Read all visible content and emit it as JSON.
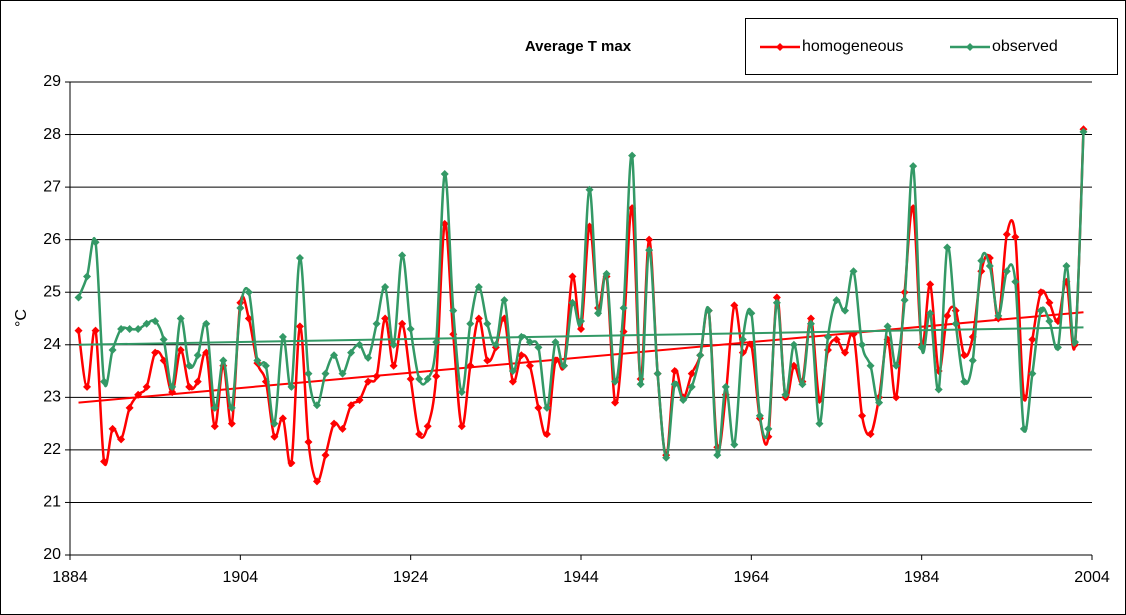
{
  "chart_data": {
    "type": "line",
    "title": "Average T max",
    "y_label": "°C",
    "xlim": [
      1884,
      2004
    ],
    "xticks": [
      1884,
      1904,
      1924,
      1944,
      1964,
      1984,
      2004
    ],
    "ylim": [
      20,
      29
    ],
    "yticks": [
      20,
      21,
      22,
      23,
      24,
      25,
      26,
      27,
      28,
      29
    ],
    "grid": true,
    "legend": "top-right",
    "x": [
      1885,
      1886,
      1887,
      1888,
      1889,
      1890,
      1891,
      1892,
      1893,
      1894,
      1895,
      1896,
      1897,
      1898,
      1899,
      1900,
      1901,
      1902,
      1903,
      1904,
      1905,
      1906,
      1907,
      1908,
      1909,
      1910,
      1911,
      1912,
      1913,
      1914,
      1915,
      1916,
      1917,
      1918,
      1919,
      1920,
      1921,
      1922,
      1923,
      1924,
      1925,
      1926,
      1927,
      1928,
      1929,
      1930,
      1931,
      1932,
      1933,
      1934,
      1935,
      1936,
      1937,
      1938,
      1939,
      1940,
      1941,
      1942,
      1943,
      1944,
      1945,
      1946,
      1947,
      1948,
      1949,
      1950,
      1951,
      1952,
      1953,
      1954,
      1955,
      1956,
      1957,
      1958,
      1959,
      1960,
      1961,
      1962,
      1963,
      1964,
      1965,
      1966,
      1967,
      1968,
      1969,
      1970,
      1971,
      1972,
      1973,
      1974,
      1975,
      1976,
      1977,
      1978,
      1979,
      1980,
      1981,
      1982,
      1983,
      1984,
      1985,
      1986,
      1987,
      1988,
      1989,
      1990,
      1991,
      1992,
      1993,
      1994,
      1995,
      1996,
      1997,
      1998,
      1999,
      2000,
      2001,
      2002,
      2003
    ],
    "series": [
      {
        "name": "homogeneous",
        "color": "#ff0000",
        "values": [
          24.27,
          23.2,
          24.27,
          21.78,
          22.4,
          22.2,
          22.8,
          23.05,
          23.2,
          23.85,
          23.7,
          23.1,
          23.9,
          23.2,
          23.3,
          23.85,
          22.45,
          23.6,
          22.5,
          24.8,
          24.5,
          23.65,
          23.3,
          22.25,
          22.6,
          21.75,
          24.35,
          22.15,
          21.4,
          21.9,
          22.5,
          22.4,
          22.85,
          22.95,
          23.3,
          23.4,
          24.5,
          23.6,
          24.4,
          23.35,
          22.3,
          22.45,
          23.4,
          26.3,
          24.2,
          22.45,
          23.6,
          24.5,
          23.7,
          23.95,
          24.5,
          23.3,
          23.8,
          23.6,
          22.8,
          22.3,
          23.7,
          23.6,
          25.3,
          24.3,
          26.25,
          24.7,
          25.3,
          22.9,
          24.25,
          26.6,
          23.35,
          26.0,
          23.45,
          21.9,
          23.5,
          23.0,
          23.45,
          23.8,
          24.65,
          22.05,
          23.05,
          24.75,
          23.85,
          24.0,
          22.6,
          22.25,
          24.9,
          23.0,
          23.6,
          23.3,
          24.5,
          22.95,
          23.9,
          24.1,
          23.85,
          24.2,
          22.65,
          22.3,
          23.0,
          24.1,
          23.0,
          25.0,
          26.6,
          24.0,
          25.15,
          23.5,
          24.55,
          24.65,
          23.8,
          24.15,
          25.4,
          25.65,
          24.5,
          26.1,
          26.05,
          23.0,
          24.1,
          25.0,
          24.8,
          24.45,
          25.2,
          24.0,
          28.1
        ],
        "trend": {
          "x": [
            1885,
            2003
          ],
          "values": [
            22.9,
            24.62
          ]
        }
      },
      {
        "name": "observed",
        "color": "#339966",
        "values": [
          24.9,
          25.3,
          25.95,
          23.3,
          23.9,
          24.3,
          24.3,
          24.3,
          24.4,
          24.45,
          24.1,
          23.2,
          24.5,
          23.6,
          23.8,
          24.4,
          22.8,
          23.7,
          22.8,
          24.7,
          25.0,
          23.7,
          23.6,
          22.5,
          24.15,
          23.2,
          25.65,
          23.45,
          22.85,
          23.45,
          23.8,
          23.45,
          23.85,
          24.0,
          23.75,
          24.4,
          25.1,
          24.0,
          25.7,
          24.3,
          23.35,
          23.35,
          24.05,
          27.25,
          24.65,
          23.1,
          24.4,
          25.1,
          24.4,
          24.0,
          24.85,
          23.5,
          24.15,
          24.05,
          23.95,
          22.8,
          24.05,
          23.6,
          24.8,
          24.45,
          26.95,
          24.6,
          25.35,
          23.3,
          24.7,
          27.6,
          23.25,
          25.8,
          23.45,
          21.85,
          23.25,
          22.95,
          23.2,
          23.8,
          24.65,
          21.9,
          23.2,
          22.1,
          24.1,
          24.6,
          22.65,
          22.4,
          24.8,
          23.05,
          24.0,
          23.25,
          24.4,
          22.5,
          24.15,
          24.85,
          24.65,
          25.4,
          24.0,
          23.6,
          22.9,
          24.35,
          23.6,
          24.85,
          27.4,
          23.95,
          24.6,
          23.15,
          25.85,
          24.4,
          23.3,
          23.7,
          25.6,
          25.5,
          24.55,
          25.4,
          25.2,
          22.4,
          23.45,
          24.65,
          24.45,
          23.95,
          25.5,
          24.05,
          28.05
        ],
        "trend": {
          "x": [
            1885,
            2003
          ],
          "values": [
            24.0,
            24.33
          ]
        }
      }
    ]
  }
}
